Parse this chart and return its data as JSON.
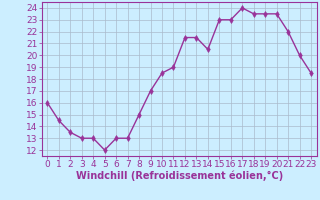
{
  "x": [
    0,
    1,
    2,
    3,
    4,
    5,
    6,
    7,
    8,
    9,
    10,
    11,
    12,
    13,
    14,
    15,
    16,
    17,
    18,
    19,
    20,
    21,
    22,
    23
  ],
  "y": [
    16.0,
    14.5,
    13.5,
    13.0,
    13.0,
    12.0,
    13.0,
    13.0,
    15.0,
    17.0,
    18.5,
    19.0,
    21.5,
    21.5,
    20.5,
    23.0,
    23.0,
    24.0,
    23.5,
    23.5,
    23.5,
    22.0,
    20.0,
    18.5
  ],
  "line_color": "#993399",
  "marker_color": "#993399",
  "bg_color": "#cceeff",
  "grid_color": "#aabbcc",
  "xlabel": "Windchill (Refroidissement éolien,°C)",
  "xlabel_color": "#993399",
  "tick_color": "#993399",
  "ylim": [
    11.5,
    24.5
  ],
  "xlim": [
    -0.5,
    23.5
  ],
  "yticks": [
    12,
    13,
    14,
    15,
    16,
    17,
    18,
    19,
    20,
    21,
    22,
    23,
    24
  ],
  "xticks": [
    0,
    1,
    2,
    3,
    4,
    5,
    6,
    7,
    8,
    9,
    10,
    11,
    12,
    13,
    14,
    15,
    16,
    17,
    18,
    19,
    20,
    21,
    22,
    23
  ],
  "xtick_labels": [
    "0",
    "1",
    "2",
    "3",
    "4",
    "5",
    "6",
    "7",
    "8",
    "9",
    "10",
    "11",
    "12",
    "13",
    "14",
    "15",
    "16",
    "17",
    "18",
    "19",
    "20",
    "21",
    "22",
    "23"
  ],
  "ytick_labels": [
    "12",
    "13",
    "14",
    "15",
    "16",
    "17",
    "18",
    "19",
    "20",
    "21",
    "22",
    "23",
    "24"
  ],
  "line_width": 1.0,
  "marker_size": 3.0,
  "font_size": 6.5,
  "xlabel_font_size": 7.0
}
